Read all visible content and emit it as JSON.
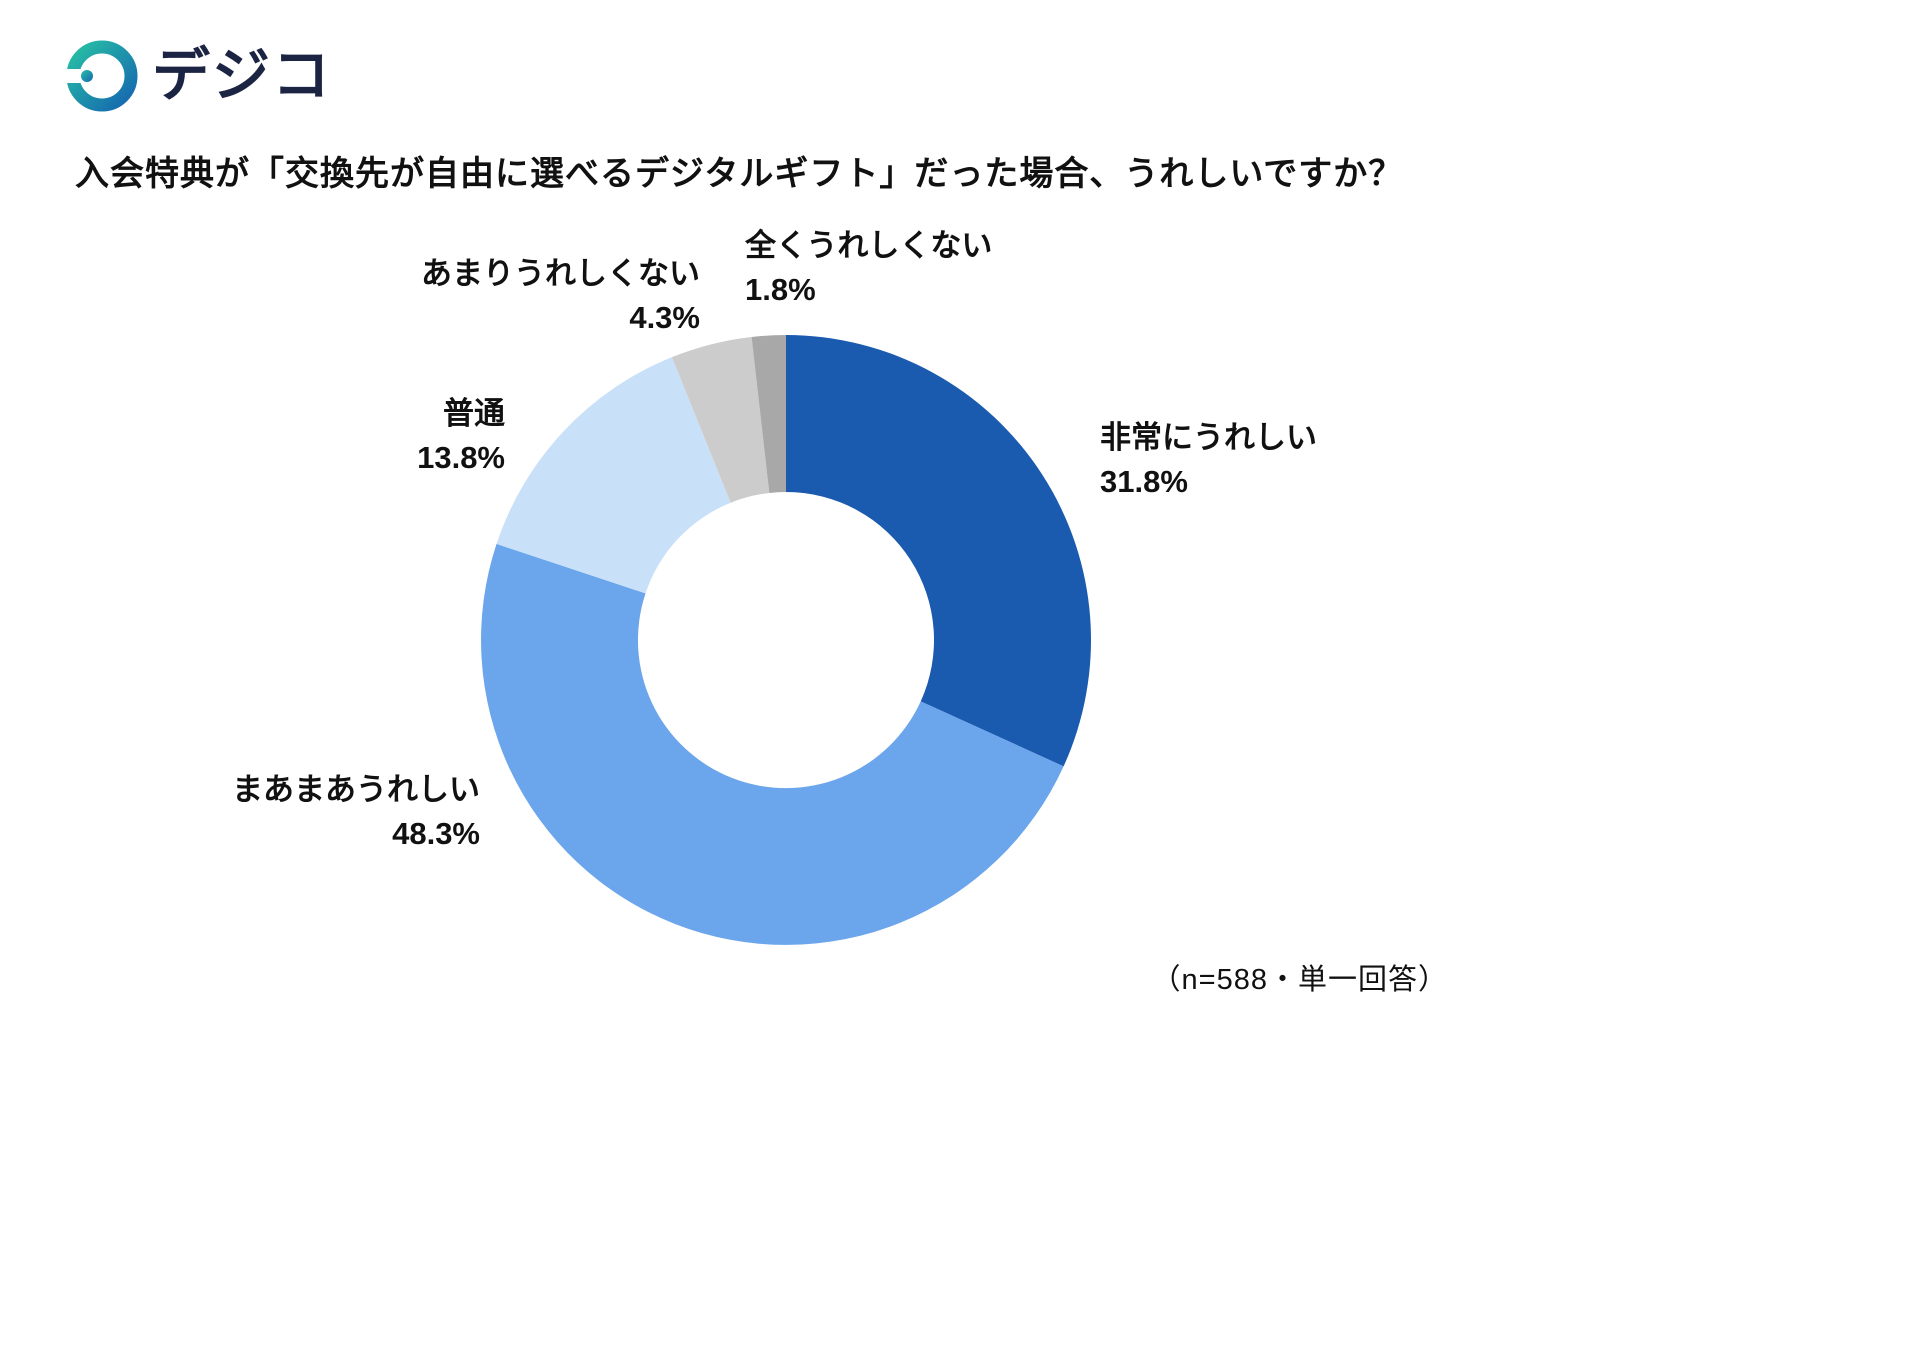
{
  "logo": {
    "brand_name": "デジコ",
    "gradient_start": "#27bfa5",
    "gradient_end": "#1566b0"
  },
  "title": "入会特典が「交換先が自由に選べるデジタルギフト」だった場合、うれしいですか？",
  "footnote": "（n=588・単一回答）",
  "chart_data": {
    "type": "pie",
    "shape": "donut",
    "start_angle_deg": 0,
    "direction": "clockwise",
    "inner_radius_ratio": 0.485,
    "title": "入会特典が「交換先が自由に選べるデジタルギフト」だった場合、うれしいですか？",
    "sample_note": "（n=588・単一回答）",
    "sample_size": 588,
    "unit": "%",
    "categories": [
      "非常にうれしい",
      "まあまあうれしい",
      "普通",
      "あまりうれしくない",
      "全くうれしくない"
    ],
    "values": [
      31.8,
      48.3,
      13.8,
      4.3,
      1.8
    ],
    "colors": [
      "#1a5bb0",
      "#6ba5ec",
      "#c9e0f9",
      "#cccccc",
      "#a8a8a8"
    ],
    "legend": "none",
    "label_items": [
      {
        "name": "非常にうれしい",
        "pct": "31.8%"
      },
      {
        "name": "まあまあうれしい",
        "pct": "48.3%"
      },
      {
        "name": "普通",
        "pct": "13.8%"
      },
      {
        "name": "あまりうれしくない",
        "pct": "4.3%"
      },
      {
        "name": "全くうれしくない",
        "pct": "1.8%"
      }
    ]
  }
}
